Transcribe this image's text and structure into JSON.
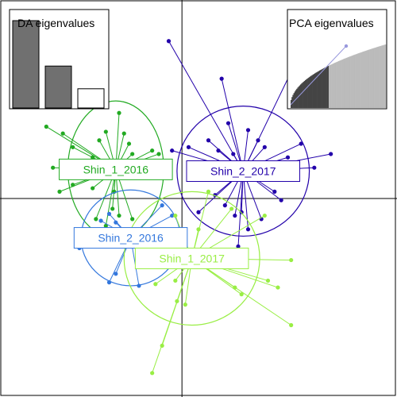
{
  "chart_data": {
    "type": "scatter",
    "title": "",
    "xlabel": "",
    "ylabel": "",
    "xlim": [
      -5.5,
      6.5
    ],
    "ylim": [
      -5.8,
      5.8
    ],
    "grid": false,
    "axes_cross": [
      0,
      0
    ],
    "groups": [
      {
        "name": "Shin_1_2016",
        "color": "#22aa22",
        "centroid": [
          -2.0,
          0.85
        ],
        "ellipse": {
          "rx": 1.45,
          "ry": 2.0
        },
        "points": [
          [
            -4.1,
            2.1
          ],
          [
            -3.6,
            1.9
          ],
          [
            -3.3,
            1.5
          ],
          [
            -3.9,
            0.9
          ],
          [
            -2.5,
            1.7
          ],
          [
            -2.3,
            1.95
          ],
          [
            -1.9,
            2.5
          ],
          [
            -1.75,
            1.9
          ],
          [
            -1.5,
            1.3
          ],
          [
            -0.9,
            1.4
          ],
          [
            -0.7,
            1.3
          ],
          [
            -1.2,
            1.1
          ],
          [
            -3.7,
            0.2
          ],
          [
            -3.3,
            0.4
          ],
          [
            -2.7,
            0.3
          ],
          [
            -2.1,
            -0.3
          ],
          [
            -1.9,
            -0.5
          ],
          [
            -1.5,
            -0.6
          ],
          [
            -2.3,
            -0.8
          ],
          [
            -2.6,
            -0.6
          ],
          [
            -2.05,
            0.2
          ],
          [
            -1.6,
            1.6
          ],
          [
            -2.7,
            1.2
          ]
        ]
      },
      {
        "name": "Shin_2_2017",
        "color": "#2200aa",
        "centroid": [
          1.85,
          0.8
        ],
        "ellipse": {
          "rx": 2.0,
          "ry": 1.9
        },
        "points": [
          [
            -0.4,
            4.6
          ],
          [
            1.2,
            3.5
          ],
          [
            3.4,
            3.9
          ],
          [
            2.5,
            1.5
          ],
          [
            3.6,
            1.6
          ],
          [
            3.2,
            1.2
          ],
          [
            4.5,
            1.3
          ],
          [
            4.0,
            0.9
          ],
          [
            2.8,
            0.2
          ],
          [
            3.0,
            -0.05
          ],
          [
            1.4,
            2.2
          ],
          [
            2.0,
            2.0
          ],
          [
            2.3,
            1.7
          ],
          [
            0.8,
            1.7
          ],
          [
            1.1,
            1.4
          ],
          [
            1.55,
            1.3
          ],
          [
            0.2,
            1.5
          ],
          [
            -0.3,
            1.4
          ],
          [
            1.6,
            -0.5
          ],
          [
            1.8,
            -0.4
          ],
          [
            2.0,
            -0.9
          ],
          [
            1.7,
            -1.4
          ],
          [
            2.4,
            -0.6
          ],
          [
            1.3,
            -0.2
          ],
          [
            0.5,
            -0.4
          ],
          [
            1.0,
            0.1
          ]
        ]
      },
      {
        "name": "Shin_2_2016",
        "color": "#3377dd",
        "centroid": [
          -1.55,
          -1.15
        ],
        "ellipse": {
          "rx": 1.5,
          "ry": 1.4
        },
        "points": [
          [
            -2.2,
            -0.45
          ],
          [
            -2.45,
            -0.65
          ],
          [
            -2.0,
            -0.7
          ],
          [
            -1.6,
            -1.0
          ],
          [
            -1.3,
            -1.3
          ],
          [
            -0.6,
            -0.2
          ],
          [
            -0.3,
            -0.5
          ],
          [
            -0.9,
            -1.2
          ],
          [
            -3.1,
            -1.45
          ],
          [
            -0.4,
            -1.35
          ],
          [
            -1.1,
            -1.55
          ],
          [
            -2.0,
            -2.2
          ],
          [
            -2.2,
            -2.45
          ],
          [
            -1.3,
            -2.55
          ]
        ]
      },
      {
        "name": "Shin_1_2017",
        "color": "#99ee44",
        "centroid": [
          0.3,
          -1.75
        ],
        "ellipse": {
          "rx": 2.05,
          "ry": 1.95
        },
        "points": [
          [
            0.8,
            0.2
          ],
          [
            1.5,
            -0.3
          ],
          [
            2.5,
            -0.5
          ],
          [
            3.3,
            -1.8
          ],
          [
            2.6,
            -2.4
          ],
          [
            2.9,
            -2.6
          ],
          [
            1.8,
            -2.8
          ],
          [
            1.6,
            -2.6
          ],
          [
            0.1,
            -3.1
          ],
          [
            -0.15,
            -3.0
          ],
          [
            -0.2,
            -2.4
          ],
          [
            -0.8,
            -2.5
          ],
          [
            -0.7,
            -1.5
          ],
          [
            -0.4,
            -1.1
          ],
          [
            -0.2,
            -0.5
          ],
          [
            3.3,
            -3.7
          ],
          [
            -0.6,
            -4.3
          ],
          [
            -0.9,
            -5.1
          ],
          [
            0.5,
            -0.9
          ]
        ]
      }
    ]
  },
  "insets": {
    "da": {
      "title": "DA eigenvalues",
      "bar_color": "#707070",
      "values": [
        1.0,
        0.48,
        0.22
      ]
    },
    "pca": {
      "title": "PCA eigenvalues",
      "retained_color": "#444444",
      "discarded_color": "#bbbbbb",
      "n": 100,
      "retained": 40
    }
  }
}
